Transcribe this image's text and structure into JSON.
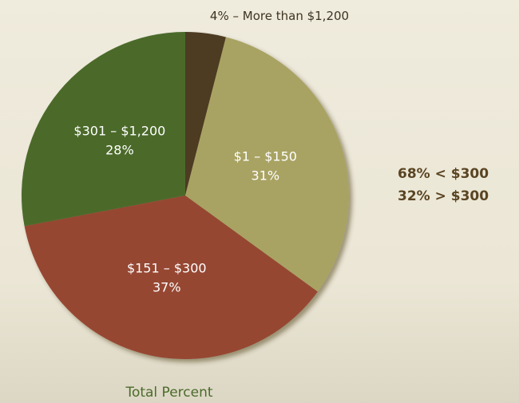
{
  "chart_data": {
    "type": "pie",
    "title": "Total Percent",
    "categories": [
      "More than $1,200",
      "$1 – $150",
      "$151 – $300",
      "$301 – $1,200"
    ],
    "values": [
      4,
      31,
      37,
      28
    ],
    "value_labels": [
      "4%",
      "31%",
      "37%",
      "28%"
    ],
    "colors": [
      "#4e3a22",
      "#a9a364",
      "#964732",
      "#4b6b2b"
    ],
    "label_separator": "–",
    "notes": [
      "68% < $300",
      "32% > $300"
    ]
  }
}
